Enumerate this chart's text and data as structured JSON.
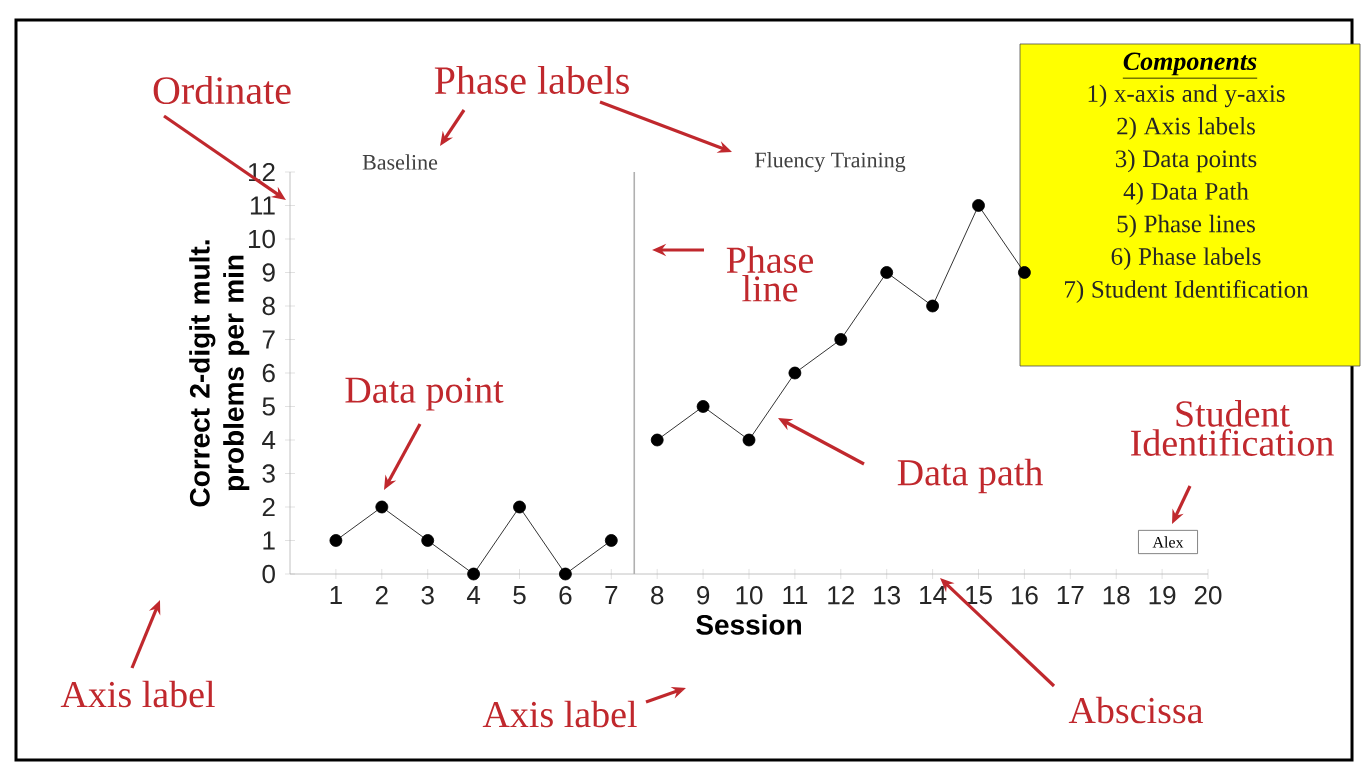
{
  "chart_data": {
    "type": "line",
    "xlabel": "Session",
    "ylabel": "Correct 2-digit mult. problems per min",
    "series": [
      {
        "color": "#000000",
        "x": [
          1,
          2,
          3,
          4,
          5,
          6,
          7
        ],
        "values": [
          1,
          2,
          1,
          0,
          2,
          0,
          1
        ]
      },
      {
        "color": "#000000",
        "x": [
          8,
          9,
          10,
          11,
          12,
          13,
          14,
          15,
          16
        ],
        "values": [
          4,
          5,
          4,
          6,
          7,
          9,
          8,
          11,
          9
        ]
      }
    ],
    "xlim": [
      0,
      20
    ],
    "ylim": [
      0,
      12
    ],
    "xticks": [
      1,
      2,
      3,
      4,
      5,
      6,
      7,
      8,
      9,
      10,
      11,
      12,
      13,
      14,
      15,
      16,
      17,
      18,
      19,
      20
    ],
    "yticks": [
      0,
      1,
      2,
      3,
      4,
      5,
      6,
      7,
      8,
      9,
      10,
      11,
      12
    ],
    "ref_lines": [
      {
        "axis": "x",
        "value": 7.5,
        "color": "#b0b0b0"
      }
    ],
    "marker": "circle",
    "line_style": "solid",
    "annotations": [
      "Ordinate",
      "Phase labels",
      "Baseline",
      "Fluency Training",
      "Phase line",
      "Data point",
      "Data path",
      "Student Identification",
      "Alex",
      "Axis label",
      "Axis label",
      "Abscissa",
      "Components",
      "1) x-axis and y-axis",
      "2) Axis labels",
      "3) Data points",
      "4) Data Path",
      "5) Phase lines",
      "6) Phase labels",
      "7) Student Identification"
    ]
  }
}
